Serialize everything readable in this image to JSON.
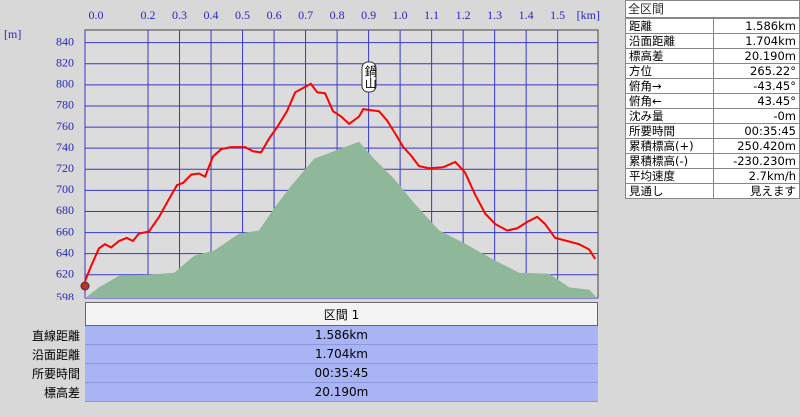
{
  "chart_data": {
    "type": "area-line",
    "y_unit": "[m]",
    "x_unit": "[km]",
    "annotation": "鍋山",
    "xlim": [
      0,
      1.628
    ],
    "ylim": [
      598,
      852
    ],
    "xticks": [
      {
        "value": 0,
        "label": "0.0"
      },
      0.2,
      0.3,
      0.4,
      0.5,
      0.6,
      0.7,
      0.8,
      0.9,
      {
        "value": 1,
        "label": "1.0"
      },
      1.1,
      1.2,
      1.3,
      1.4,
      1.5
    ],
    "yticks": [
      598,
      620,
      640,
      660,
      680,
      700,
      720,
      740,
      760,
      780,
      800,
      820,
      840
    ],
    "grid": true,
    "series": [
      {
        "color": "#8fb89a",
        "fill": true,
        "x": [
          0,
          0.044,
          0.108,
          0.203,
          0.283,
          0.346,
          0.41,
          0.489,
          0.552,
          0.6,
          0.648,
          0.727,
          0.806,
          0.87,
          0.917,
          0.981,
          1.044,
          1.124,
          1.203,
          1.298,
          1.378,
          1.473,
          1.537,
          1.6,
          1.625
        ],
        "values": [
          598,
          608,
          619,
          620,
          622,
          638,
          643,
          659,
          662,
          683,
          702,
          730,
          739,
          746,
          730,
          711,
          688,
          662,
          650,
          634,
          622,
          621,
          608,
          606,
          598
        ]
      },
      {
        "color": "#ff0000",
        "fill": false,
        "x": [
          0,
          0.019,
          0.044,
          0.063,
          0.083,
          0.108,
          0.133,
          0.152,
          0.171,
          0.203,
          0.235,
          0.267,
          0.292,
          0.311,
          0.337,
          0.362,
          0.381,
          0.406,
          0.432,
          0.463,
          0.508,
          0.533,
          0.559,
          0.584,
          0.61,
          0.641,
          0.667,
          0.692,
          0.717,
          0.737,
          0.762,
          0.787,
          0.813,
          0.838,
          0.87,
          0.883,
          0.908,
          0.933,
          0.959,
          0.984,
          1.01,
          1.035,
          1.06,
          1.092,
          1.137,
          1.175,
          1.206,
          1.238,
          1.27,
          1.302,
          1.34,
          1.371,
          1.403,
          1.435,
          1.46,
          1.492,
          1.53,
          1.568,
          1.6,
          1.619
        ],
        "values": [
          614,
          628,
          645,
          649,
          646,
          652,
          655,
          652,
          659,
          661,
          675,
          692,
          705,
          707,
          715,
          716,
          713,
          732,
          739,
          741,
          741,
          737,
          736,
          749,
          760,
          775,
          793,
          797,
          801,
          793,
          792,
          775,
          770,
          763,
          770,
          777,
          776,
          775,
          766,
          754,
          741,
          733,
          723,
          721,
          722,
          727,
          717,
          696,
          678,
          668,
          662,
          664,
          670,
          675,
          668,
          655,
          652,
          649,
          644,
          635
        ]
      }
    ]
  },
  "summary": {
    "title": "全区間",
    "rows": [
      [
        "距離",
        "1.586km"
      ],
      [
        "沿面距離",
        "1.704km"
      ],
      [
        "標高差",
        "20.190m"
      ],
      [
        "方位",
        "265.22°"
      ],
      [
        "俯角→",
        "-43.45°"
      ],
      [
        "俯角←",
        "43.45°"
      ],
      [
        "沈み量",
        "-0m"
      ],
      [
        "所要時間",
        "00:35:45"
      ],
      [
        "累積標高(+)",
        "250.420m"
      ],
      [
        "累積標高(-)",
        "-230.230m"
      ],
      [
        "平均速度",
        "2.7km/h"
      ],
      [
        "見通し",
        "見えます"
      ]
    ]
  },
  "section": {
    "title": "区間 1",
    "rows": [
      [
        "直線距離",
        "1.586km"
      ],
      [
        "沿面距離",
        "1.704km"
      ],
      [
        "所要時間",
        "00:35:45"
      ],
      [
        "標高差",
        "20.190m"
      ]
    ]
  }
}
